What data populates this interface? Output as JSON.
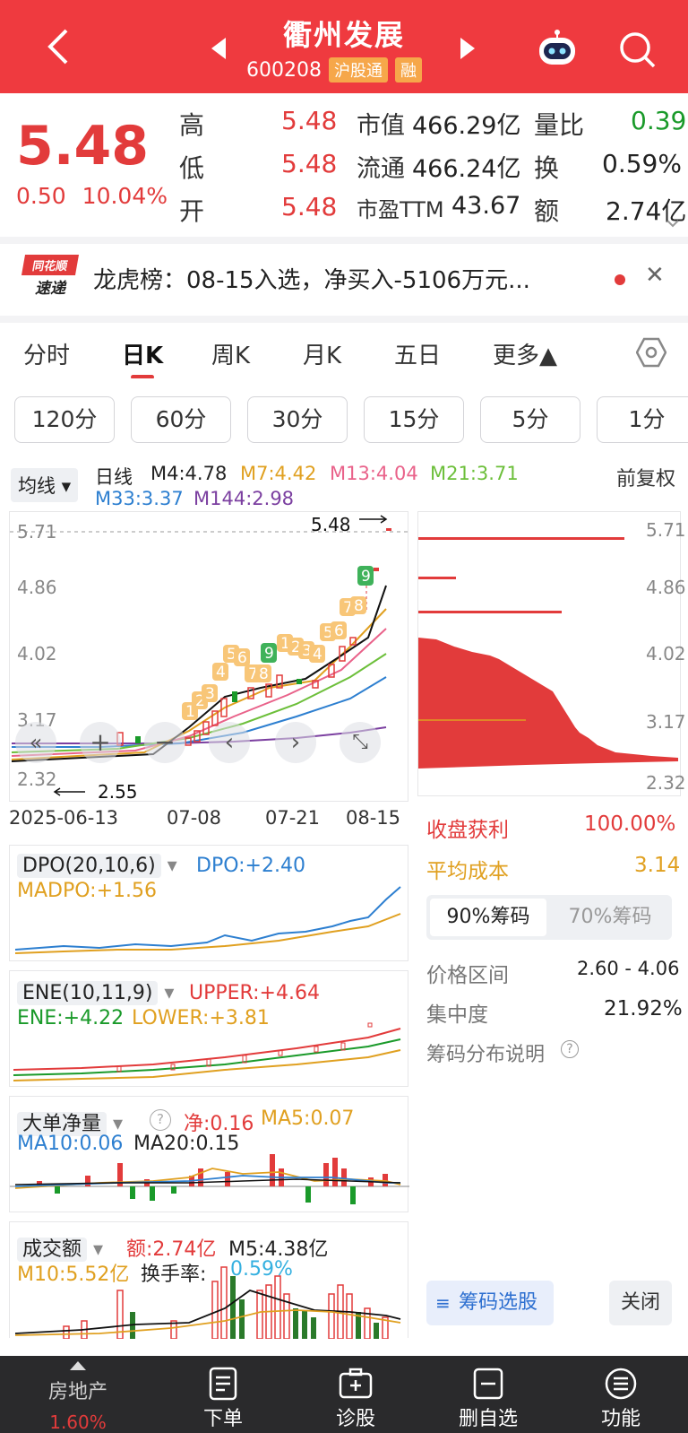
{
  "header": {
    "title": "衢州发展",
    "code": "600208",
    "badges": [
      "沪股通",
      "融"
    ]
  },
  "quote": {
    "price": "5.48",
    "change": "0.50",
    "change_pct": "10.04%",
    "rows": [
      {
        "l1": "高",
        "v1": "5.48",
        "l2": "市值",
        "v2": "466.29亿",
        "l3": "量比",
        "v3": "0.39"
      },
      {
        "l1": "低",
        "v1": "5.48",
        "l2": "流通",
        "v2": "466.24亿",
        "l3": "换",
        "v3": "0.59%"
      },
      {
        "l1": "开",
        "v1": "5.48",
        "l2": "市盈TTM",
        "v2": "43.67",
        "l3": "额",
        "v3": "2.74亿"
      }
    ]
  },
  "news": {
    "logo_top": "同花顺",
    "logo_bottom": "速递",
    "text": "龙虎榜：08-15入选，净买入-5106万元..."
  },
  "tabs": [
    "分时",
    "日K",
    "周K",
    "月K",
    "五日",
    "更多▲"
  ],
  "periods": [
    "120分",
    "60分",
    "30分",
    "15分",
    "5分",
    "1分"
  ],
  "ma": {
    "selector": "均线",
    "type": "日线",
    "items": [
      {
        "label": "M4:4.78",
        "color": "#222"
      },
      {
        "label": "M7:4.42",
        "color": "#e0a020"
      },
      {
        "label": "M13:4.04",
        "color": "#e9628a"
      },
      {
        "label": "M21:3.71",
        "color": "#6cbf3a"
      },
      {
        "label": "M33:3.37",
        "color": "#2d7fd0"
      },
      {
        "label": "M144:2.98",
        "color": "#7b3fa0"
      }
    ],
    "fuquan": "前复权"
  },
  "kline": {
    "yticks": [
      "5.71",
      "4.86",
      "4.02",
      "3.17",
      "2.32"
    ],
    "high_mark": "5.48",
    "low_mark": "2.55",
    "dates": [
      "2025-06-13",
      "07-08",
      "07-21",
      "08-15"
    ],
    "seq_marks": [
      "1",
      "2",
      "3",
      "4",
      "5",
      "6",
      "7",
      "8",
      "9",
      "1",
      "2",
      "3",
      "4",
      "5",
      "6",
      "7",
      "8",
      "9"
    ]
  },
  "chip": {
    "profit_label": "收盘获利",
    "profit_value": "100.00%",
    "cost_label": "平均成本",
    "cost_value": "3.14",
    "tabs": [
      "90%筹码",
      "70%筹码"
    ],
    "range_label": "价格区间",
    "range_value": "2.60 - 4.06",
    "conc_label": "集中度",
    "conc_value": "21.92%",
    "explain": "筹码分布说明",
    "select_btn": "筹码选股",
    "close_btn": "关闭"
  },
  "dpo": {
    "name": "DPO(20,10,6)",
    "dpo": "DPO:+2.40",
    "madpo": "MADPO:+1.56"
  },
  "ene": {
    "name": "ENE(10,11,9)",
    "upper": "UPPER:+4.64",
    "ene": "ENE:+4.22",
    "lower": "LOWER:+3.81"
  },
  "dadan": {
    "name": "大单净量",
    "jing": "净:0.16",
    "ma5": "MA5:0.07",
    "ma10": "MA10:0.06",
    "ma20": "MA20:0.15"
  },
  "amount": {
    "name": "成交额",
    "e": "额:2.74亿",
    "m5": "M5:4.38亿",
    "m10": "M10:5.52亿",
    "turnover_label": "换手率:",
    "turnover": "0.59%"
  },
  "botnav": {
    "sector": "房地产",
    "sector_pct": "1.60%",
    "items": [
      "下单",
      "诊股",
      "删自选",
      "功能"
    ]
  }
}
